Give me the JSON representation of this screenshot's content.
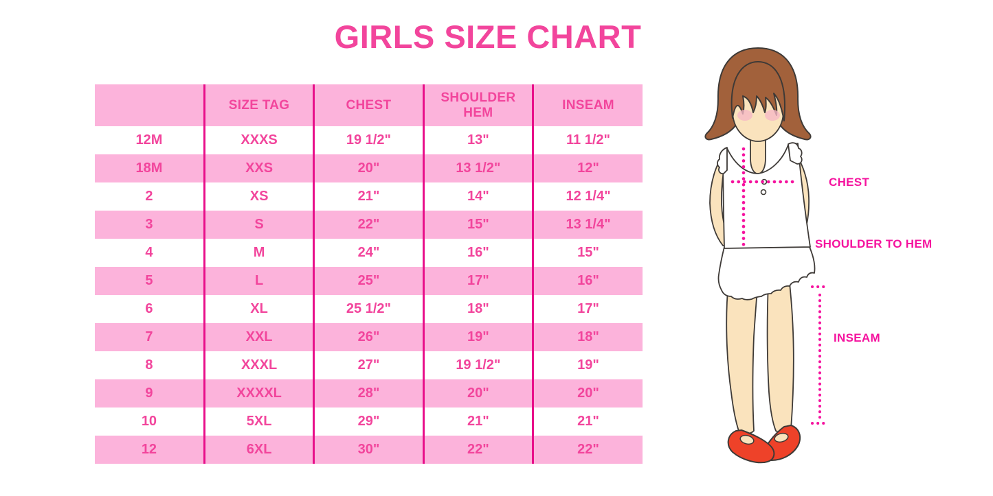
{
  "chart_data": {
    "type": "table",
    "title": "GIRLS SIZE CHART",
    "columns": [
      "",
      "SIZE TAG",
      "CHEST",
      "SHOULDER HEM",
      "INSEAM"
    ],
    "rows": [
      [
        "12M",
        "XXXS",
        "19 1/2\"",
        "13\"",
        "11 1/2\""
      ],
      [
        "18M",
        "XXS",
        "20\"",
        "13 1/2\"",
        "12\""
      ],
      [
        "2",
        "XS",
        "21\"",
        "14\"",
        "12 1/4\""
      ],
      [
        "3",
        "S",
        "22\"",
        "15\"",
        "13 1/4\""
      ],
      [
        "4",
        "M",
        "24\"",
        "16\"",
        "15\""
      ],
      [
        "5",
        "L",
        "25\"",
        "17\"",
        "16\""
      ],
      [
        "6",
        "XL",
        "25 1/2\"",
        "18\"",
        "17\""
      ],
      [
        "7",
        "XXL",
        "26\"",
        "19\"",
        "18\""
      ],
      [
        "8",
        "XXXL",
        "27\"",
        "19 1/2\"",
        "19\""
      ],
      [
        "9",
        "XXXXL",
        "28\"",
        "20\"",
        "20\""
      ],
      [
        "10",
        "5XL",
        "29\"",
        "21\"",
        "21\""
      ],
      [
        "12",
        "6XL",
        "30\"",
        "22\"",
        "22\""
      ]
    ],
    "row_striping": "header and even data rows pink, odd data rows white",
    "legend_position": "none"
  },
  "diagram": {
    "chest_label": "CHEST",
    "shoulder_to_hem_label": "SHOULDER TO HEM",
    "inseam_label": "INSEAM"
  },
  "colors": {
    "accent_pink": "#F2459C",
    "row_pink": "#FCB3DB",
    "divider_magenta": "#E80F8A",
    "dotted_magenta": "#F5129E",
    "hair_brown": "#A2613B",
    "skin": "#FAE3BD",
    "blush": "#F6B9C6",
    "shoe_red": "#EE4229",
    "outline": "#3E3A37"
  }
}
